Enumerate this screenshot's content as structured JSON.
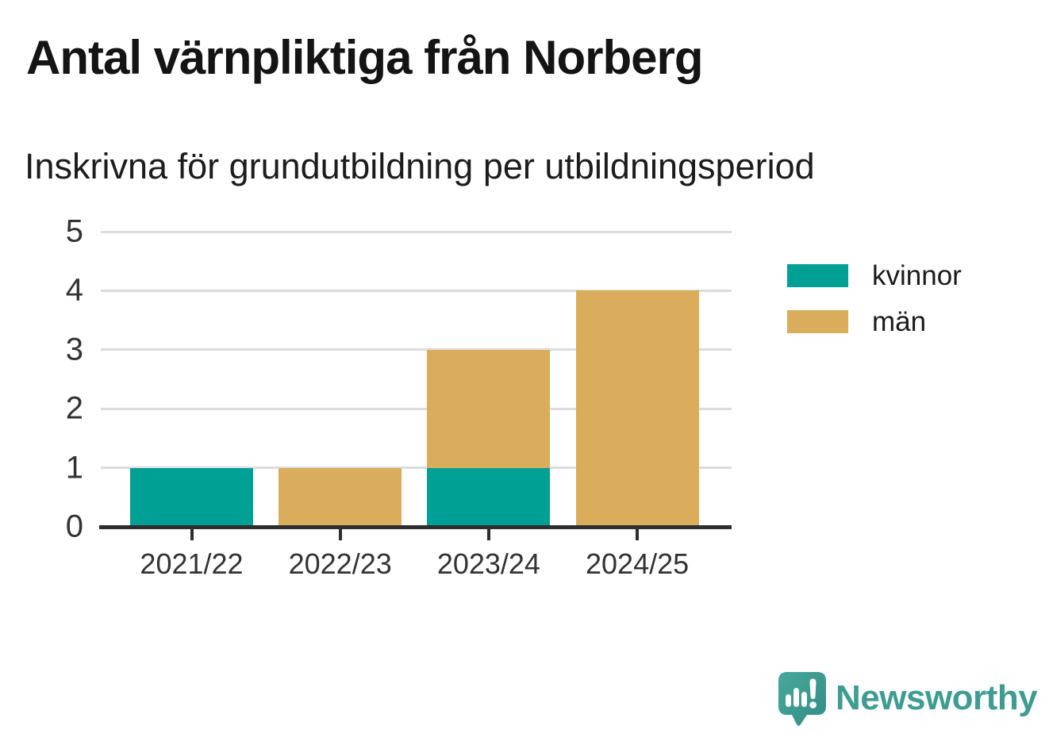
{
  "title": "Antal värnpliktiga från Norberg",
  "subtitle": "Inskrivna för grundutbildning per utbildningsperiod",
  "colors": {
    "kvinnor": "#00a094",
    "man": "#d9ad5b",
    "axis": "#2e2e2e",
    "gridline": "#dcdcdc",
    "tick_text": "#333333",
    "brand_teal": "#3f9c93",
    "logo_fill": "#3e9d92"
  },
  "legend": {
    "items": [
      {
        "label": "kvinnor",
        "color": "#00a094"
      },
      {
        "label": "män",
        "color": "#d9ad5b"
      }
    ]
  },
  "footer": {
    "brand": "Newsworthy",
    "logo_icon": "newsworthy-speech-bubble-chart-icon"
  },
  "chart_data": {
    "type": "bar",
    "stacked": true,
    "title": "Antal värnpliktiga från Norberg",
    "subtitle": "Inskrivna för grundutbildning per utbildningsperiod",
    "categories": [
      "2021/22",
      "2022/23",
      "2023/24",
      "2024/25"
    ],
    "series": [
      {
        "name": "kvinnor",
        "color": "#00a094",
        "values": [
          1,
          0,
          1,
          0
        ]
      },
      {
        "name": "män",
        "color": "#d9ad5b",
        "values": [
          0,
          1,
          2,
          4
        ]
      }
    ],
    "totals": [
      1,
      1,
      3,
      4
    ],
    "xlabel": "",
    "ylabel": "",
    "ylim": [
      0,
      5
    ],
    "yticks": [
      0,
      1,
      2,
      3,
      4,
      5
    ],
    "grid": true,
    "legend_position": "right"
  }
}
